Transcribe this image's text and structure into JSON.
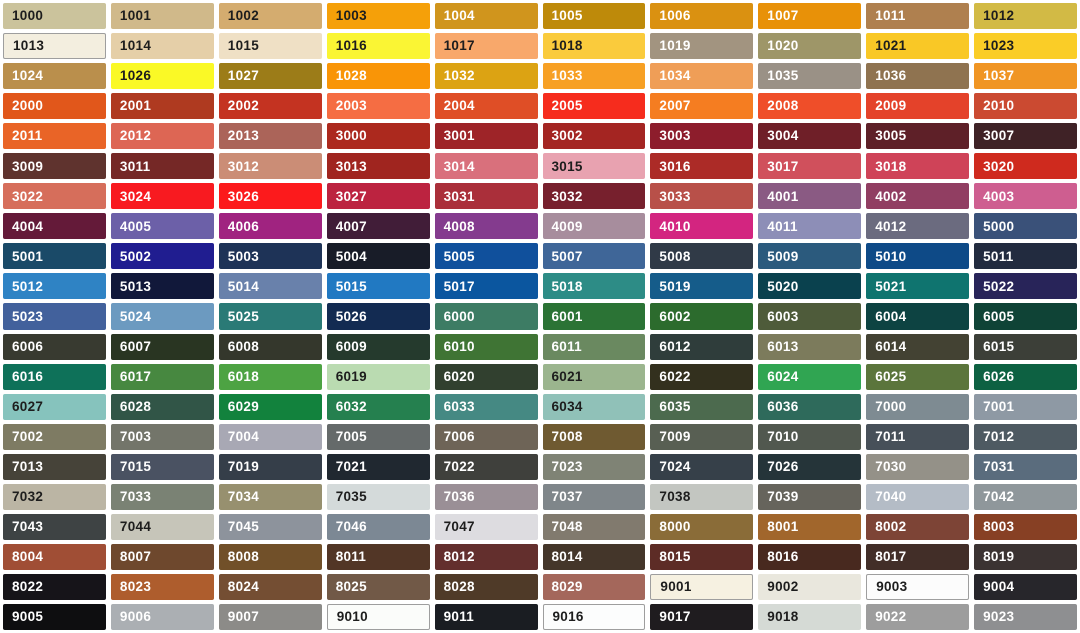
{
  "app": {
    "title": "RAL colour chart"
  },
  "grid": {
    "columns": 10,
    "rows": 21,
    "text_dark": "#1d1d1d",
    "text_light": "#ffffff",
    "border_color": "#9e9e9e",
    "background": "#ffffff",
    "swatches": [
      {
        "code": "1000",
        "hex": "#CBC39C",
        "text": "dark"
      },
      {
        "code": "1001",
        "hex": "#D0B98A",
        "text": "dark"
      },
      {
        "code": "1002",
        "hex": "#D4AC6F",
        "text": "dark"
      },
      {
        "code": "1003",
        "hex": "#F5A009",
        "text": "dark"
      },
      {
        "code": "1004",
        "hex": "#D0951D",
        "text": "light"
      },
      {
        "code": "1005",
        "hex": "#BE8A0A",
        "text": "light"
      },
      {
        "code": "1006",
        "hex": "#DA9111",
        "text": "light"
      },
      {
        "code": "1007",
        "hex": "#E89108",
        "text": "light"
      },
      {
        "code": "1011",
        "hex": "#AF804F",
        "text": "light"
      },
      {
        "code": "1012",
        "hex": "#D2BA45",
        "text": "dark"
      },
      {
        "code": "1013",
        "hex": "#F3EEDF",
        "text": "dark",
        "bordered": true
      },
      {
        "code": "1014",
        "hex": "#E5CFA8",
        "text": "dark"
      },
      {
        "code": "1015",
        "hex": "#EFE0C5",
        "text": "dark"
      },
      {
        "code": "1016",
        "hex": "#FAF534",
        "text": "dark"
      },
      {
        "code": "1017",
        "hex": "#F8A86B",
        "text": "dark"
      },
      {
        "code": "1018",
        "hex": "#FACB3C",
        "text": "dark"
      },
      {
        "code": "1019",
        "hex": "#A29480",
        "text": "light"
      },
      {
        "code": "1020",
        "hex": "#9E9668",
        "text": "light"
      },
      {
        "code": "1021",
        "hex": "#F9C826",
        "text": "dark"
      },
      {
        "code": "1023",
        "hex": "#FACD27",
        "text": "dark"
      },
      {
        "code": "1024",
        "hex": "#BA8F4C",
        "text": "light"
      },
      {
        "code": "1026",
        "hex": "#FAF926",
        "text": "dark"
      },
      {
        "code": "1027",
        "hex": "#9C7C18",
        "text": "light"
      },
      {
        "code": "1028",
        "hex": "#F99507",
        "text": "light"
      },
      {
        "code": "1032",
        "hex": "#DCA313",
        "text": "light"
      },
      {
        "code": "1033",
        "hex": "#F7A024",
        "text": "light"
      },
      {
        "code": "1034",
        "hex": "#EF9E57",
        "text": "light"
      },
      {
        "code": "1035",
        "hex": "#9A9186",
        "text": "light"
      },
      {
        "code": "1036",
        "hex": "#8F7350",
        "text": "light"
      },
      {
        "code": "1037",
        "hex": "#F09523",
        "text": "light"
      },
      {
        "code": "2000",
        "hex": "#E1571B",
        "text": "light"
      },
      {
        "code": "2001",
        "hex": "#AF3A20",
        "text": "light"
      },
      {
        "code": "2002",
        "hex": "#C43321",
        "text": "light"
      },
      {
        "code": "2003",
        "hex": "#F56D43",
        "text": "light"
      },
      {
        "code": "2004",
        "hex": "#DF4E26",
        "text": "light"
      },
      {
        "code": "2005",
        "hex": "#F62C1D",
        "text": "light"
      },
      {
        "code": "2007",
        "hex": "#F57D21",
        "text": "light"
      },
      {
        "code": "2008",
        "hex": "#EF4E29",
        "text": "light"
      },
      {
        "code": "2009",
        "hex": "#E4422A",
        "text": "light"
      },
      {
        "code": "2010",
        "hex": "#CB4A31",
        "text": "light"
      },
      {
        "code": "2011",
        "hex": "#E96427",
        "text": "light"
      },
      {
        "code": "2012",
        "hex": "#DD6654",
        "text": "light"
      },
      {
        "code": "2013",
        "hex": "#AB6459",
        "text": "light"
      },
      {
        "code": "3000",
        "hex": "#AC291E",
        "text": "light"
      },
      {
        "code": "3001",
        "hex": "#9E2428",
        "text": "light"
      },
      {
        "code": "3002",
        "hex": "#A42522",
        "text": "light"
      },
      {
        "code": "3003",
        "hex": "#8D1D2C",
        "text": "light"
      },
      {
        "code": "3004",
        "hex": "#6F1F28",
        "text": "light"
      },
      {
        "code": "3005",
        "hex": "#5E2028",
        "text": "light"
      },
      {
        "code": "3007",
        "hex": "#3F2226",
        "text": "light"
      },
      {
        "code": "3009",
        "hex": "#5F332E",
        "text": "light"
      },
      {
        "code": "3011",
        "hex": "#752826",
        "text": "light"
      },
      {
        "code": "3012",
        "hex": "#CB8D76",
        "text": "light"
      },
      {
        "code": "3013",
        "hex": "#A0251F",
        "text": "light"
      },
      {
        "code": "3014",
        "hex": "#D9707C",
        "text": "light"
      },
      {
        "code": "3015",
        "hex": "#E8A2B0",
        "text": "dark"
      },
      {
        "code": "3016",
        "hex": "#AC2B27",
        "text": "light"
      },
      {
        "code": "3017",
        "hex": "#D0505C",
        "text": "light"
      },
      {
        "code": "3018",
        "hex": "#CF4358",
        "text": "light"
      },
      {
        "code": "3020",
        "hex": "#CF2A1E",
        "text": "light"
      },
      {
        "code": "3022",
        "hex": "#D66E5B",
        "text": "light"
      },
      {
        "code": "3024",
        "hex": "#F81A20",
        "text": "light"
      },
      {
        "code": "3026",
        "hex": "#FC1A1C",
        "text": "light"
      },
      {
        "code": "3027",
        "hex": "#BC2340",
        "text": "light"
      },
      {
        "code": "3031",
        "hex": "#AA2F3A",
        "text": "light"
      },
      {
        "code": "3032",
        "hex": "#77202D",
        "text": "light"
      },
      {
        "code": "3033",
        "hex": "#B85049",
        "text": "light"
      },
      {
        "code": "4001",
        "hex": "#8A5A83",
        "text": "light"
      },
      {
        "code": "4002",
        "hex": "#913E62",
        "text": "light"
      },
      {
        "code": "4003",
        "hex": "#CE5E90",
        "text": "light"
      },
      {
        "code": "4004",
        "hex": "#641A39",
        "text": "light"
      },
      {
        "code": "4005",
        "hex": "#6C60A8",
        "text": "light"
      },
      {
        "code": "4006",
        "hex": "#A02380",
        "text": "light"
      },
      {
        "code": "4007",
        "hex": "#411D38",
        "text": "light"
      },
      {
        "code": "4008",
        "hex": "#843B8E",
        "text": "light"
      },
      {
        "code": "4009",
        "hex": "#A78D9D",
        "text": "light"
      },
      {
        "code": "4010",
        "hex": "#D32580",
        "text": "light"
      },
      {
        "code": "4011",
        "hex": "#8D8EB7",
        "text": "light"
      },
      {
        "code": "4012",
        "hex": "#6B6B7F",
        "text": "light"
      },
      {
        "code": "5000",
        "hex": "#3A5179",
        "text": "light"
      },
      {
        "code": "5001",
        "hex": "#1A4A68",
        "text": "light"
      },
      {
        "code": "5002",
        "hex": "#201D90",
        "text": "light"
      },
      {
        "code": "5003",
        "hex": "#1E3357",
        "text": "light"
      },
      {
        "code": "5004",
        "hex": "#181C28",
        "text": "light"
      },
      {
        "code": "5005",
        "hex": "#10509C",
        "text": "light"
      },
      {
        "code": "5007",
        "hex": "#3F6698",
        "text": "light"
      },
      {
        "code": "5008",
        "hex": "#303A47",
        "text": "light"
      },
      {
        "code": "5009",
        "hex": "#2B5A7D",
        "text": "light"
      },
      {
        "code": "5010",
        "hex": "#0E4A87",
        "text": "light"
      },
      {
        "code": "5011",
        "hex": "#222B3F",
        "text": "light"
      },
      {
        "code": "5012",
        "hex": "#2F83C4",
        "text": "light"
      },
      {
        "code": "5013",
        "hex": "#11183A",
        "text": "light"
      },
      {
        "code": "5014",
        "hex": "#6981AB",
        "text": "light"
      },
      {
        "code": "5015",
        "hex": "#2179C2",
        "text": "light"
      },
      {
        "code": "5017",
        "hex": "#0B569F",
        "text": "light"
      },
      {
        "code": "5018",
        "hex": "#2D8C86",
        "text": "light"
      },
      {
        "code": "5019",
        "hex": "#155C8A",
        "text": "light"
      },
      {
        "code": "5020",
        "hex": "#0A414E",
        "text": "light"
      },
      {
        "code": "5021",
        "hex": "#0F746F",
        "text": "light"
      },
      {
        "code": "5022",
        "hex": "#282459",
        "text": "light"
      },
      {
        "code": "5023",
        "hex": "#42619C",
        "text": "light"
      },
      {
        "code": "5024",
        "hex": "#6C9AC0",
        "text": "light"
      },
      {
        "code": "5025",
        "hex": "#2A7A76",
        "text": "light"
      },
      {
        "code": "5026",
        "hex": "#132B52",
        "text": "light"
      },
      {
        "code": "6000",
        "hex": "#3D7C64",
        "text": "light"
      },
      {
        "code": "6001",
        "hex": "#2B7335",
        "text": "light"
      },
      {
        "code": "6002",
        "hex": "#2C6B2D",
        "text": "light"
      },
      {
        "code": "6003",
        "hex": "#4E5B3A",
        "text": "light"
      },
      {
        "code": "6004",
        "hex": "#0D4342",
        "text": "light"
      },
      {
        "code": "6005",
        "hex": "#0F4336",
        "text": "light"
      },
      {
        "code": "6006",
        "hex": "#383A30",
        "text": "light"
      },
      {
        "code": "6007",
        "hex": "#293522",
        "text": "light"
      },
      {
        "code": "6008",
        "hex": "#34372C",
        "text": "light"
      },
      {
        "code": "6009",
        "hex": "#253A2D",
        "text": "light"
      },
      {
        "code": "6010",
        "hex": "#3F7434",
        "text": "light"
      },
      {
        "code": "6011",
        "hex": "#6A8960",
        "text": "light"
      },
      {
        "code": "6012",
        "hex": "#2F3D3B",
        "text": "light"
      },
      {
        "code": "6013",
        "hex": "#7C7B5C",
        "text": "light"
      },
      {
        "code": "6014",
        "hex": "#434233",
        "text": "light"
      },
      {
        "code": "6015",
        "hex": "#3C3F38",
        "text": "light"
      },
      {
        "code": "6016",
        "hex": "#0E7159",
        "text": "light"
      },
      {
        "code": "6017",
        "hex": "#478840",
        "text": "light"
      },
      {
        "code": "6018",
        "hex": "#4DA343",
        "text": "light"
      },
      {
        "code": "6019",
        "hex": "#BADBB1",
        "text": "dark"
      },
      {
        "code": "6020",
        "hex": "#31402F",
        "text": "light"
      },
      {
        "code": "6021",
        "hex": "#9BB58E",
        "text": "dark"
      },
      {
        "code": "6022",
        "hex": "#33301E",
        "text": "light"
      },
      {
        "code": "6024",
        "hex": "#30A552",
        "text": "light"
      },
      {
        "code": "6025",
        "hex": "#5B753C",
        "text": "light"
      },
      {
        "code": "6026",
        "hex": "#0D6142",
        "text": "light"
      },
      {
        "code": "6027",
        "hex": "#86C3BD",
        "text": "dark"
      },
      {
        "code": "6028",
        "hex": "#315547",
        "text": "light"
      },
      {
        "code": "6029",
        "hex": "#12823D",
        "text": "light"
      },
      {
        "code": "6032",
        "hex": "#25804F",
        "text": "light"
      },
      {
        "code": "6033",
        "hex": "#458983",
        "text": "light"
      },
      {
        "code": "6034",
        "hex": "#90C1B8",
        "text": "dark"
      },
      {
        "code": "6035",
        "hex": "#4C6A4E",
        "text": "light"
      },
      {
        "code": "6036",
        "hex": "#2E6A5B",
        "text": "light"
      },
      {
        "code": "7000",
        "hex": "#7E8B92",
        "text": "light"
      },
      {
        "code": "7001",
        "hex": "#8E99A4",
        "text": "light"
      },
      {
        "code": "7002",
        "hex": "#7E7B63",
        "text": "light"
      },
      {
        "code": "7003",
        "hex": "#73756A",
        "text": "light"
      },
      {
        "code": "7004",
        "hex": "#A8A8B4",
        "text": "light"
      },
      {
        "code": "7005",
        "hex": "#656A6A",
        "text": "light"
      },
      {
        "code": "7006",
        "hex": "#6E6457",
        "text": "light"
      },
      {
        "code": "7008",
        "hex": "#6F5A31",
        "text": "light"
      },
      {
        "code": "7009",
        "hex": "#585F53",
        "text": "light"
      },
      {
        "code": "7010",
        "hex": "#51584F",
        "text": "light"
      },
      {
        "code": "7011",
        "hex": "#475059",
        "text": "light"
      },
      {
        "code": "7012",
        "hex": "#4E5A62",
        "text": "light"
      },
      {
        "code": "7013",
        "hex": "#464339",
        "text": "light"
      },
      {
        "code": "7015",
        "hex": "#4A5262",
        "text": "light"
      },
      {
        "code": "7019",
        "hex": "#353E49",
        "text": "light"
      },
      {
        "code": "7021",
        "hex": "#202830",
        "text": "light"
      },
      {
        "code": "7022",
        "hex": "#3F403C",
        "text": "light"
      },
      {
        "code": "7023",
        "hex": "#7F8375",
        "text": "light"
      },
      {
        "code": "7024",
        "hex": "#364049",
        "text": "light"
      },
      {
        "code": "7026",
        "hex": "#253439",
        "text": "light"
      },
      {
        "code": "7030",
        "hex": "#949188",
        "text": "light"
      },
      {
        "code": "7031",
        "hex": "#5A6C7D",
        "text": "light"
      },
      {
        "code": "7032",
        "hex": "#BBB5A4",
        "text": "dark"
      },
      {
        "code": "7033",
        "hex": "#7A8274",
        "text": "light"
      },
      {
        "code": "7034",
        "hex": "#97906F",
        "text": "light"
      },
      {
        "code": "7035",
        "hex": "#D4DADA",
        "text": "dark"
      },
      {
        "code": "7036",
        "hex": "#9A8F96",
        "text": "light"
      },
      {
        "code": "7037",
        "hex": "#7F868A",
        "text": "light"
      },
      {
        "code": "7038",
        "hex": "#C3C6C1",
        "text": "dark"
      },
      {
        "code": "7039",
        "hex": "#66645C",
        "text": "light"
      },
      {
        "code": "7040",
        "hex": "#B4BCC6",
        "text": "light"
      },
      {
        "code": "7042",
        "hex": "#8F979B",
        "text": "light"
      },
      {
        "code": "7043",
        "hex": "#3E4344",
        "text": "light"
      },
      {
        "code": "7044",
        "hex": "#C6C5B9",
        "text": "dark"
      },
      {
        "code": "7045",
        "hex": "#8D939C",
        "text": "light"
      },
      {
        "code": "7046",
        "hex": "#7C8894",
        "text": "light"
      },
      {
        "code": "7047",
        "hex": "#DDDCE0",
        "text": "dark"
      },
      {
        "code": "7048",
        "hex": "#817A6E",
        "text": "light"
      },
      {
        "code": "8000",
        "hex": "#8A6C38",
        "text": "light"
      },
      {
        "code": "8001",
        "hex": "#A1662C",
        "text": "light"
      },
      {
        "code": "8002",
        "hex": "#7D4436",
        "text": "light"
      },
      {
        "code": "8003",
        "hex": "#874024",
        "text": "light"
      },
      {
        "code": "8004",
        "hex": "#A04E35",
        "text": "light"
      },
      {
        "code": "8007",
        "hex": "#6E482D",
        "text": "light"
      },
      {
        "code": "8008",
        "hex": "#715029",
        "text": "light"
      },
      {
        "code": "8011",
        "hex": "#523626",
        "text": "light"
      },
      {
        "code": "8012",
        "hex": "#632F2D",
        "text": "light"
      },
      {
        "code": "8014",
        "hex": "#44362A",
        "text": "light"
      },
      {
        "code": "8015",
        "hex": "#5D2C26",
        "text": "light"
      },
      {
        "code": "8016",
        "hex": "#48291F",
        "text": "light"
      },
      {
        "code": "8017",
        "hex": "#422E28",
        "text": "light"
      },
      {
        "code": "8019",
        "hex": "#3B3332",
        "text": "light"
      },
      {
        "code": "8022",
        "hex": "#161419",
        "text": "light"
      },
      {
        "code": "8023",
        "hex": "#AE5D2D",
        "text": "light"
      },
      {
        "code": "8024",
        "hex": "#744E33",
        "text": "light"
      },
      {
        "code": "8025",
        "hex": "#715947",
        "text": "light"
      },
      {
        "code": "8028",
        "hex": "#4F3A28",
        "text": "light"
      },
      {
        "code": "8029",
        "hex": "#A4675B",
        "text": "light"
      },
      {
        "code": "9001",
        "hex": "#F6F1E1",
        "text": "dark",
        "bordered": true
      },
      {
        "code": "9002",
        "hex": "#E9E7DD",
        "text": "dark"
      },
      {
        "code": "9003",
        "hex": "#FCFCFC",
        "text": "dark",
        "bordered": true
      },
      {
        "code": "9004",
        "hex": "#27262B",
        "text": "light"
      },
      {
        "code": "9005",
        "hex": "#0E0E10",
        "text": "light"
      },
      {
        "code": "9006",
        "hex": "#ABAFB3",
        "text": "light"
      },
      {
        "code": "9007",
        "hex": "#8C8B88",
        "text": "light"
      },
      {
        "code": "9010",
        "hex": "#FBFCFA",
        "text": "dark",
        "bordered": true
      },
      {
        "code": "9011",
        "hex": "#1A1D22",
        "text": "light"
      },
      {
        "code": "9016",
        "hex": "#FCFDFD",
        "text": "dark",
        "bordered": true
      },
      {
        "code": "9017",
        "hex": "#1F1C1F",
        "text": "light"
      },
      {
        "code": "9018",
        "hex": "#D5DAD5",
        "text": "dark"
      },
      {
        "code": "9022",
        "hex": "#9D9D9D",
        "text": "light"
      },
      {
        "code": "9023",
        "hex": "#8E8F91",
        "text": "light"
      }
    ]
  }
}
